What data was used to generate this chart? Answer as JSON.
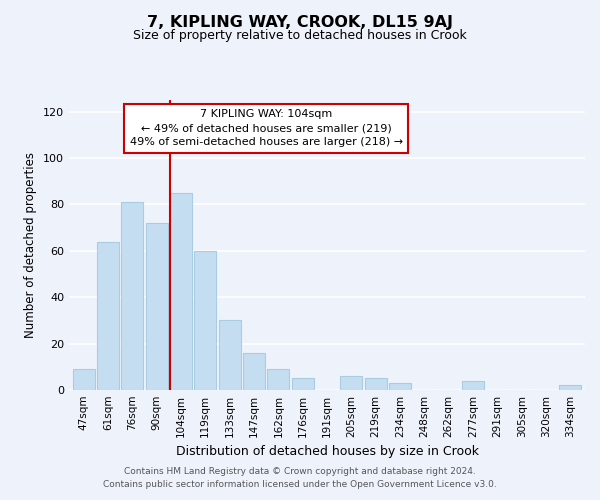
{
  "title": "7, KIPLING WAY, CROOK, DL15 9AJ",
  "subtitle": "Size of property relative to detached houses in Crook",
  "xlabel": "Distribution of detached houses by size in Crook",
  "ylabel": "Number of detached properties",
  "categories": [
    "47sqm",
    "61sqm",
    "76sqm",
    "90sqm",
    "104sqm",
    "119sqm",
    "133sqm",
    "147sqm",
    "162sqm",
    "176sqm",
    "191sqm",
    "205sqm",
    "219sqm",
    "234sqm",
    "248sqm",
    "262sqm",
    "277sqm",
    "291sqm",
    "305sqm",
    "320sqm",
    "334sqm"
  ],
  "values": [
    9,
    64,
    81,
    72,
    85,
    60,
    30,
    16,
    9,
    5,
    0,
    6,
    5,
    3,
    0,
    0,
    4,
    0,
    0,
    0,
    2
  ],
  "bar_color": "#c5ddf0",
  "bar_edge_color": "#a8cce0",
  "marker_index": 4,
  "marker_line_color": "#cc0000",
  "annotation_lines": [
    "7 KIPLING WAY: 104sqm",
    "← 49% of detached houses are smaller (219)",
    "49% of semi-detached houses are larger (218) →"
  ],
  "annotation_box_edge": "#cc0000",
  "ylim": [
    0,
    125
  ],
  "yticks": [
    0,
    20,
    40,
    60,
    80,
    100,
    120
  ],
  "footer_lines": [
    "Contains HM Land Registry data © Crown copyright and database right 2024.",
    "Contains public sector information licensed under the Open Government Licence v3.0."
  ],
  "background_color": "#eef3fb",
  "plot_background_color": "#eef3fb"
}
